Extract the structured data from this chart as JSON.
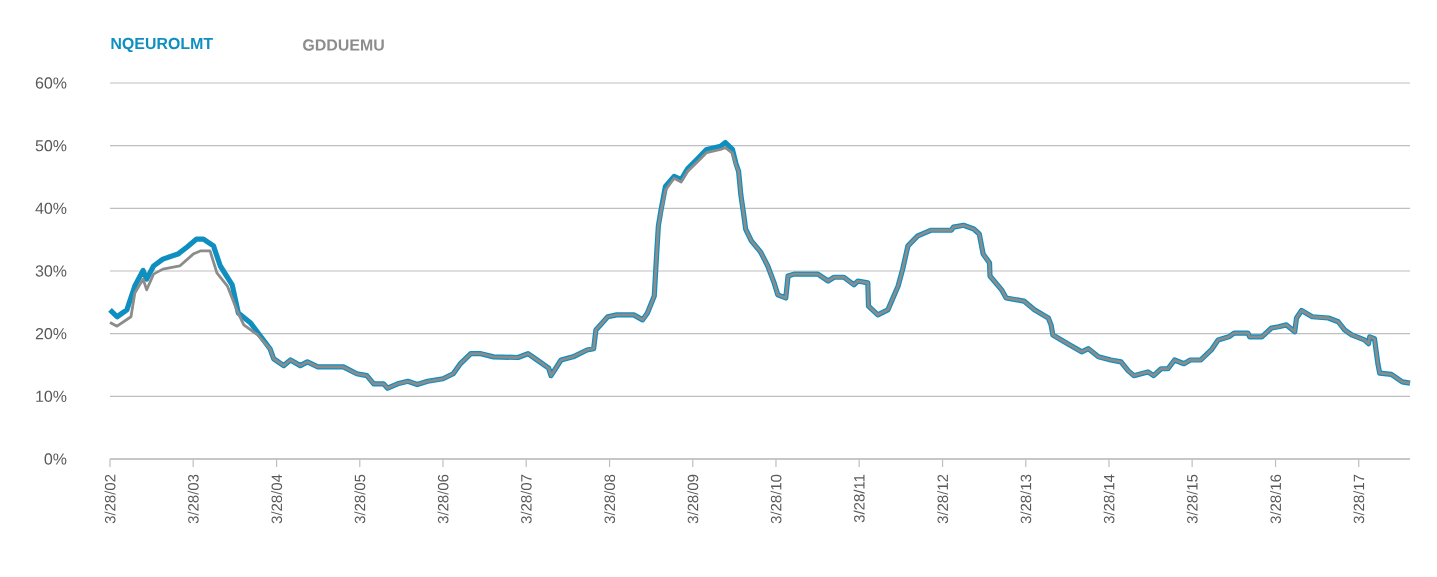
{
  "chart_data": {
    "type": "line",
    "xlim": [
      "2002-03-28",
      "2017-11-08"
    ],
    "xticks": [
      {
        "value": "2002-03-28",
        "label": "3/28/02"
      },
      {
        "value": "2003-03-28",
        "label": "3/28/03"
      },
      {
        "value": "2004-03-28",
        "label": "3/28/04"
      },
      {
        "value": "2005-03-28",
        "label": "3/28/05"
      },
      {
        "value": "2006-03-28",
        "label": "3/28/06"
      },
      {
        "value": "2007-03-28",
        "label": "3/28/07"
      },
      {
        "value": "2008-03-28",
        "label": "3/28/08"
      },
      {
        "value": "2009-03-28",
        "label": "3/28/09"
      },
      {
        "value": "2010-03-28",
        "label": "3/28/10"
      },
      {
        "value": "2011-03-28",
        "label": "3/28/11"
      },
      {
        "value": "2012-03-28",
        "label": "3/28/12"
      },
      {
        "value": "2013-03-28",
        "label": "3/28/13"
      },
      {
        "value": "2014-03-28",
        "label": "3/28/14"
      },
      {
        "value": "2015-03-28",
        "label": "3/28/15"
      },
      {
        "value": "2016-03-28",
        "label": "3/28/16"
      },
      {
        "value": "2017-03-28",
        "label": "3/28/17"
      }
    ],
    "ylim": [
      0,
      60
    ],
    "yticks": [
      {
        "value": 0,
        "label": "0%"
      },
      {
        "value": 10,
        "label": "10%"
      },
      {
        "value": 20,
        "label": "20%"
      },
      {
        "value": 30,
        "label": "30%"
      },
      {
        "value": 40,
        "label": "40%"
      },
      {
        "value": 50,
        "label": "50%"
      },
      {
        "value": 60,
        "label": "60%"
      }
    ],
    "grid": "y",
    "legend": "top left",
    "marker": "none",
    "line_style": "solid",
    "series": [
      {
        "name": "NQEUROLMT",
        "color": "#0e8fc0",
        "x": [
          "2002-03-28",
          "2002-04-28",
          "2002-06-10",
          "2002-07-15",
          "2002-08-20",
          "2002-09-05",
          "2002-10-05",
          "2002-11-15",
          "2003-01-20",
          "2003-02-28",
          "2003-04-12",
          "2003-05-12",
          "2003-06-25",
          "2003-07-25",
          "2003-09-15",
          "2003-10-12",
          "2003-12-05",
          "2004-02-28",
          "2004-03-15",
          "2004-04-28",
          "2004-05-28",
          "2004-07-10",
          "2004-08-10",
          "2004-09-25",
          "2005-01-15",
          "2005-03-15",
          "2005-04-28",
          "2005-05-28",
          "2005-07-10",
          "2005-07-28",
          "2005-09-10",
          "2005-10-25",
          "2005-12-05",
          "2006-01-20",
          "2006-03-28",
          "2006-05-12",
          "2006-06-12",
          "2006-07-28",
          "2006-09-10",
          "2006-11-05",
          "2007-02-20",
          "2007-04-05",
          "2007-05-15",
          "2007-07-05",
          "2007-07-15",
          "2007-08-28",
          "2007-10-20",
          "2007-12-20",
          "2008-01-18",
          "2008-01-28",
          "2008-03-20",
          "2008-04-28",
          "2008-07-12",
          "2008-08-20",
          "2008-09-10",
          "2008-10-10",
          "2008-10-20",
          "2008-10-28",
          "2008-11-08",
          "2008-11-28",
          "2009-01-05",
          "2009-02-05",
          "2009-03-05",
          "2009-04-20",
          "2009-05-28",
          "2009-07-28",
          "2009-08-18",
          "2009-09-18",
          "2009-10-03",
          "2009-10-15",
          "2009-10-25",
          "2009-11-05",
          "2009-11-15",
          "2009-12-10",
          "2010-01-20",
          "2010-02-20",
          "2010-03-20",
          "2010-04-05",
          "2010-05-10",
          "2010-05-20",
          "2010-06-15",
          "2010-09-28",
          "2010-11-12",
          "2010-12-08",
          "2011-01-20",
          "2011-03-05",
          "2011-03-22",
          "2011-05-05",
          "2011-05-08",
          "2011-06-18",
          "2011-08-01",
          "2011-09-15",
          "2011-10-05",
          "2011-10-28",
          "2011-12-10",
          "2012-02-05",
          "2012-05-05",
          "2012-05-15",
          "2012-06-28",
          "2012-08-12",
          "2012-09-05",
          "2012-09-22",
          "2012-10-20",
          "2012-10-22",
          "2012-12-12",
          "2013-01-01",
          "2013-03-20",
          "2013-05-05",
          "2013-07-05",
          "2013-07-17",
          "2013-07-25",
          "2013-09-28",
          "2013-11-28",
          "2013-12-28",
          "2014-02-10",
          "2014-04-05",
          "2014-05-20",
          "2014-06-20",
          "2014-07-15",
          "2014-09-15",
          "2014-10-10",
          "2014-11-12",
          "2014-12-12",
          "2015-01-10",
          "2015-02-20",
          "2015-03-20",
          "2015-05-05",
          "2015-06-20",
          "2015-07-20",
          "2015-09-05",
          "2015-09-28",
          "2015-11-28",
          "2015-12-05",
          "2016-01-28",
          "2016-03-10",
          "2016-04-10",
          "2016-05-15",
          "2016-06-20",
          "2016-06-28",
          "2016-07-20",
          "2016-09-05",
          "2016-11-15",
          "2016-12-28",
          "2017-01-25",
          "2017-02-25",
          "2017-04-22",
          "2017-05-10",
          "2017-05-15",
          "2017-06-05",
          "2017-06-20",
          "2017-06-28",
          "2017-08-18",
          "2017-10-05",
          "2017-11-08"
        ],
        "values": [
          23.8,
          22.7,
          23.8,
          27.6,
          30.1,
          28.7,
          30.8,
          31.9,
          32.7,
          33.8,
          35.1,
          35.1,
          34.0,
          30.8,
          27.8,
          23.3,
          21.7,
          17.6,
          16.0,
          14.9,
          15.8,
          14.9,
          15.5,
          14.7,
          14.7,
          13.6,
          13.3,
          12.0,
          12.0,
          11.3,
          12.0,
          12.4,
          11.9,
          12.4,
          12.8,
          13.6,
          15.2,
          16.8,
          16.8,
          16.3,
          16.2,
          16.8,
          15.8,
          14.5,
          13.3,
          15.8,
          16.3,
          17.4,
          17.6,
          20.6,
          22.7,
          23.0,
          23.0,
          22.2,
          23.3,
          26.0,
          32.4,
          37.2,
          39.6,
          43.5,
          45.1,
          44.6,
          46.3,
          48.0,
          49.4,
          49.9,
          50.5,
          49.4,
          47.2,
          45.9,
          42.1,
          39.4,
          36.7,
          34.8,
          33.0,
          30.8,
          28.1,
          26.2,
          25.7,
          29.2,
          29.5,
          29.5,
          28.4,
          29.0,
          29.0,
          27.8,
          28.4,
          28.1,
          24.4,
          23.0,
          23.8,
          27.6,
          30.3,
          34.0,
          35.6,
          36.5,
          36.5,
          37.0,
          37.3,
          36.7,
          35.9,
          32.7,
          31.3,
          29.2,
          27.0,
          25.7,
          25.2,
          23.8,
          22.5,
          21.4,
          19.8,
          18.4,
          17.1,
          17.6,
          16.3,
          15.8,
          15.5,
          14.1,
          13.3,
          13.9,
          13.3,
          14.4,
          14.4,
          15.8,
          15.2,
          15.8,
          15.8,
          17.4,
          19.0,
          19.5,
          20.1,
          20.1,
          19.5,
          19.5,
          20.9,
          21.1,
          21.4,
          20.3,
          22.5,
          23.7,
          22.7,
          22.5,
          21.9,
          20.6,
          19.8,
          19.0,
          18.4,
          19.5,
          19.2,
          15.2,
          13.7,
          13.5,
          12.3,
          12.1
        ]
      },
      {
        "name": "GDDUEMU",
        "color": "#8c8c8c",
        "x": [
          "2002-03-28",
          "2002-04-28",
          "2002-06-28",
          "2002-07-15",
          "2002-08-20",
          "2002-09-05",
          "2002-10-05",
          "2002-11-15",
          "2003-01-28",
          "2003-03-28",
          "2003-04-28",
          "2003-06-10",
          "2003-07-10",
          "2003-08-25",
          "2003-10-05",
          "2003-11-05",
          "2004-01-05",
          "2004-02-28",
          "2004-03-15",
          "2004-04-28",
          "2004-05-28",
          "2004-07-10",
          "2004-08-10",
          "2004-09-25",
          "2005-01-15",
          "2005-03-15",
          "2005-04-28",
          "2005-05-28",
          "2005-07-10",
          "2005-07-28",
          "2005-09-10",
          "2005-10-25",
          "2005-12-05",
          "2006-01-20",
          "2006-03-28",
          "2006-05-12",
          "2006-06-12",
          "2006-07-28",
          "2006-09-10",
          "2006-11-05",
          "2007-02-20",
          "2007-04-05",
          "2007-05-15",
          "2007-07-05",
          "2007-07-15",
          "2007-08-28",
          "2007-10-20",
          "2007-12-20",
          "2008-01-18",
          "2008-01-28",
          "2008-03-20",
          "2008-04-28",
          "2008-07-12",
          "2008-08-20",
          "2008-09-10",
          "2008-10-10",
          "2008-10-20",
          "2008-10-28",
          "2008-11-08",
          "2008-11-28",
          "2009-01-05",
          "2009-02-05",
          "2009-03-05",
          "2009-04-20",
          "2009-05-28",
          "2009-07-28",
          "2009-08-18",
          "2009-09-18",
          "2009-10-03",
          "2009-10-15",
          "2009-10-25",
          "2009-11-05",
          "2009-11-15",
          "2009-12-10",
          "2010-01-20",
          "2010-02-20",
          "2010-03-20",
          "2010-04-05",
          "2010-05-10",
          "2010-05-20",
          "2010-06-15",
          "2010-09-28",
          "2010-11-12",
          "2010-12-08",
          "2011-01-20",
          "2011-03-05",
          "2011-03-22",
          "2011-05-05",
          "2011-05-08",
          "2011-06-18",
          "2011-08-01",
          "2011-09-15",
          "2011-10-05",
          "2011-10-28",
          "2011-12-10",
          "2012-02-05",
          "2012-05-05",
          "2012-05-15",
          "2012-06-28",
          "2012-08-12",
          "2012-09-05",
          "2012-09-22",
          "2012-10-20",
          "2012-10-22",
          "2012-12-12",
          "2013-01-01",
          "2013-03-20",
          "2013-05-05",
          "2013-07-05",
          "2013-07-17",
          "2013-07-25",
          "2013-09-28",
          "2013-11-28",
          "2013-12-28",
          "2014-02-10",
          "2014-04-05",
          "2014-05-20",
          "2014-06-20",
          "2014-07-15",
          "2014-09-15",
          "2014-10-10",
          "2014-11-12",
          "2014-12-12",
          "2015-01-10",
          "2015-02-20",
          "2015-03-20",
          "2015-05-05",
          "2015-06-20",
          "2015-07-20",
          "2015-09-05",
          "2015-09-28",
          "2015-11-28",
          "2015-12-05",
          "2016-01-28",
          "2016-03-10",
          "2016-04-10",
          "2016-05-15",
          "2016-06-20",
          "2016-06-28",
          "2016-07-20",
          "2016-09-05",
          "2016-11-15",
          "2016-12-28",
          "2017-01-25",
          "2017-02-25",
          "2017-04-22",
          "2017-05-10",
          "2017-05-15",
          "2017-06-05",
          "2017-06-20",
          "2017-06-28",
          "2017-08-18",
          "2017-10-05",
          "2017-11-08"
        ],
        "values": [
          21.8,
          21.2,
          22.7,
          26.5,
          28.7,
          27.0,
          29.5,
          30.3,
          30.8,
          32.7,
          33.2,
          33.2,
          29.7,
          27.6,
          23.8,
          21.4,
          19.8,
          17.6,
          16.0,
          14.9,
          15.8,
          14.9,
          15.5,
          14.7,
          14.7,
          13.6,
          13.3,
          12.0,
          12.0,
          11.3,
          12.0,
          12.4,
          11.9,
          12.4,
          12.8,
          13.6,
          15.2,
          16.8,
          16.8,
          16.3,
          16.2,
          16.8,
          15.8,
          14.5,
          13.3,
          15.8,
          16.3,
          17.4,
          17.6,
          20.6,
          22.7,
          23.0,
          23.0,
          22.2,
          23.3,
          26.0,
          32.4,
          37.2,
          39.4,
          42.9,
          44.8,
          44.2,
          45.9,
          47.5,
          48.9,
          49.4,
          49.7,
          48.8,
          47.0,
          45.9,
          42.1,
          39.4,
          36.7,
          34.8,
          33.0,
          30.8,
          28.1,
          26.2,
          25.7,
          29.2,
          29.5,
          29.5,
          28.4,
          29.0,
          29.0,
          27.8,
          28.4,
          28.1,
          24.4,
          23.0,
          23.8,
          27.6,
          30.3,
          34.0,
          35.6,
          36.5,
          36.5,
          37.0,
          37.3,
          36.7,
          35.9,
          32.7,
          31.3,
          29.2,
          27.0,
          25.7,
          25.2,
          23.8,
          22.5,
          21.4,
          19.8,
          18.4,
          17.1,
          17.6,
          16.3,
          15.8,
          15.5,
          14.1,
          13.3,
          13.9,
          13.3,
          14.4,
          14.4,
          15.8,
          15.2,
          15.8,
          15.8,
          17.4,
          19.0,
          19.5,
          20.1,
          20.1,
          19.5,
          19.5,
          20.9,
          21.1,
          21.4,
          20.3,
          22.5,
          23.7,
          22.7,
          22.5,
          21.9,
          20.6,
          19.8,
          19.0,
          18.4,
          19.5,
          19.2,
          15.2,
          13.7,
          13.5,
          12.3,
          12.1
        ]
      }
    ]
  }
}
